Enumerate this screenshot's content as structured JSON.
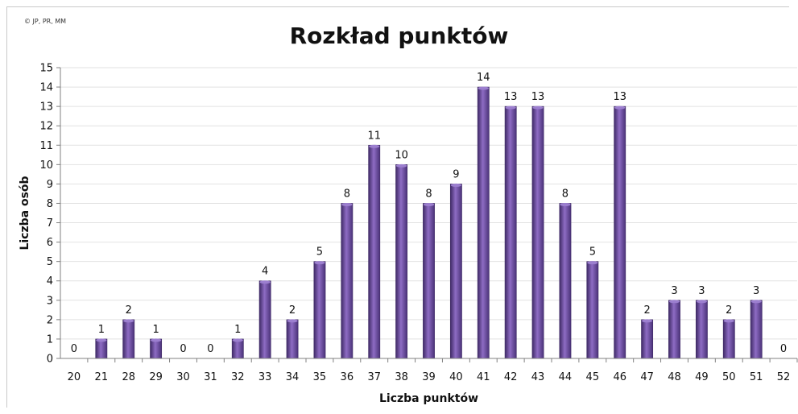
{
  "copyright": "© JP, PR, MM",
  "chart_data": {
    "type": "bar",
    "title": "Rozkład punktów",
    "xlabel": "Liczba punktów",
    "ylabel": "Liczba osób",
    "ylim": [
      0,
      15
    ],
    "yticks": [
      0,
      1,
      2,
      3,
      4,
      5,
      6,
      7,
      8,
      9,
      10,
      11,
      12,
      13,
      14,
      15
    ],
    "grid": true,
    "categories": [
      "20",
      "21",
      "28",
      "29",
      "30",
      "31",
      "32",
      "33",
      "34",
      "35",
      "36",
      "37",
      "38",
      "39",
      "40",
      "41",
      "42",
      "43",
      "44",
      "45",
      "46",
      "47",
      "48",
      "49",
      "50",
      "51",
      "52"
    ],
    "values": [
      0,
      1,
      2,
      1,
      0,
      0,
      1,
      4,
      2,
      5,
      8,
      11,
      10,
      8,
      9,
      14,
      13,
      13,
      8,
      5,
      13,
      2,
      3,
      3,
      2,
      3,
      0
    ],
    "data_labels": true,
    "colors": {
      "bar": "#6b4a9e",
      "bar_light": "#9c7fcf",
      "bar_dark": "#3f2a66",
      "grid": "#e2e2e2",
      "axis": "#808080"
    }
  }
}
